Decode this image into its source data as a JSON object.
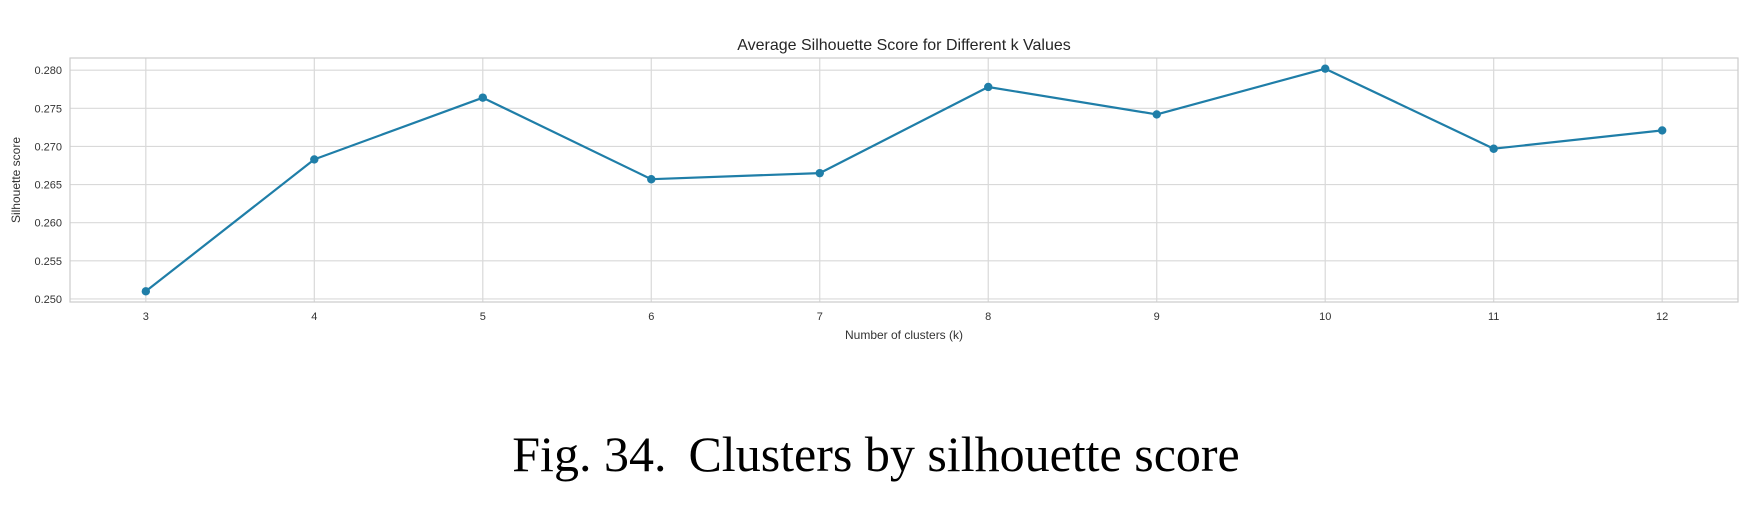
{
  "chart_data": {
    "type": "line",
    "title": "Average Silhouette Score for Different k Values",
    "xlabel": "Number of clusters (k)",
    "ylabel": "Silhouette score",
    "x": [
      3,
      4,
      5,
      6,
      7,
      8,
      9,
      10,
      11,
      12
    ],
    "series": [
      {
        "values": [
          0.251,
          0.2683,
          0.2764,
          0.2657,
          0.2665,
          0.2778,
          0.2742,
          0.2802,
          0.2697,
          0.2721
        ]
      }
    ],
    "x_ticks": [
      "3",
      "4",
      "5",
      "6",
      "7",
      "8",
      "9",
      "10",
      "11",
      "12"
    ],
    "y_ticks": [
      "0.250",
      "0.255",
      "0.260",
      "0.265",
      "0.270",
      "0.275",
      "0.280"
    ],
    "xlim": [
      2.55,
      12.45
    ],
    "ylim": [
      0.2496,
      0.2816
    ],
    "grid": true,
    "colors": {
      "line": "#1f7ea8",
      "grid": "#d9d9d9",
      "frame": "#cccccc"
    }
  },
  "figure": {
    "label": "Fig. 34.",
    "text": "Clusters by silhouette score"
  }
}
